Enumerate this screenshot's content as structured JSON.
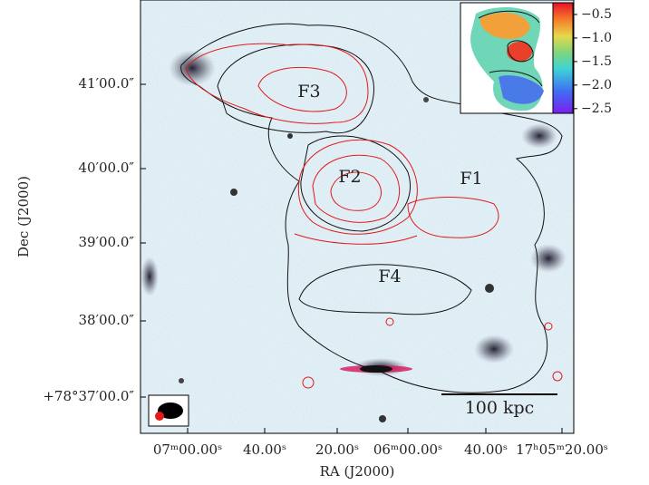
{
  "figure": {
    "x_label": "RA (J2000)",
    "y_label": "Dec (J2000)",
    "x_tick_labels": [
      "07ᵐ00.00ˢ",
      "40.00ˢ",
      "20.00ˢ",
      "06ᵐ00.00ˢ",
      "40.00ˢ",
      "17ʰ05ᵐ20.00ˢ"
    ],
    "y_tick_labels": [
      "41′00.0″",
      "40′00.0″",
      "39′00.0″",
      "38′00.0″",
      "+78°37′00.0″"
    ],
    "regions": [
      "F1",
      "F2",
      "F3",
      "F4"
    ],
    "scale_bar": "100 kpc",
    "colorbar": {
      "lim": [
        -0.25,
        -2.6
      ],
      "ticks": [
        {
          "value": -0.5,
          "label": "−0.5"
        },
        {
          "value": -1.0,
          "label": "−1.0"
        },
        {
          "value": -1.5,
          "label": "−1.5"
        },
        {
          "value": -2.0,
          "label": "−2.0"
        },
        {
          "value": -2.5,
          "label": "−2.5"
        }
      ]
    }
  }
}
